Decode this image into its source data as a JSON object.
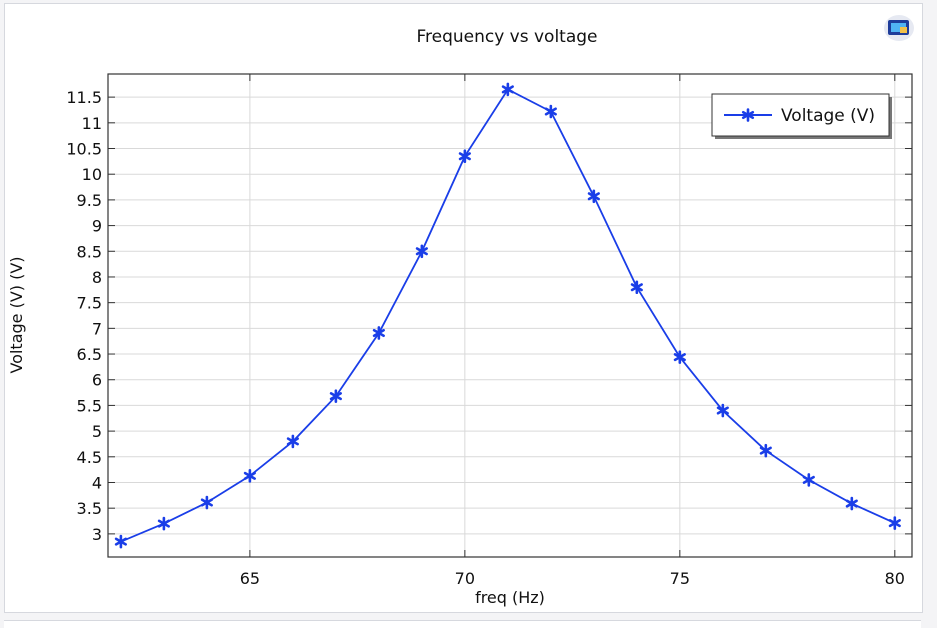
{
  "chart_data": {
    "type": "line",
    "title": "Frequency vs voltage",
    "xlabel": "freq (Hz)",
    "ylabel": "Voltage (V) (V)",
    "xlim": [
      61.7,
      80.4
    ],
    "ylim": [
      2.55,
      11.95
    ],
    "xticks": [
      65,
      70,
      75,
      80
    ],
    "xtick_labels": [
      "65",
      "70",
      "75",
      "80"
    ],
    "yticks": [
      3,
      3.5,
      4,
      4.5,
      5,
      5.5,
      6,
      6.5,
      7,
      7.5,
      8,
      8.5,
      9,
      9.5,
      10,
      10.5,
      11,
      11.5
    ],
    "ytick_labels": [
      "3",
      "3.5",
      "4",
      "4.5",
      "5",
      "5.5",
      "6",
      "6.5",
      "7",
      "7.5",
      "8",
      "8.5",
      "9",
      "9.5",
      "10",
      "10.5",
      "11",
      "11.5"
    ],
    "grid": true,
    "legend_position": "top-right",
    "series": [
      {
        "name": "Voltage (V)",
        "color": "#1a3ee8",
        "marker": "asterisk",
        "x": [
          62,
          63,
          64,
          65,
          66,
          67,
          68,
          69,
          70,
          71,
          72,
          73,
          74,
          75,
          76,
          77,
          78,
          79,
          80
        ],
        "y": [
          2.85,
          3.2,
          3.61,
          4.13,
          4.8,
          5.68,
          6.91,
          8.5,
          10.35,
          11.65,
          11.22,
          9.57,
          7.8,
          6.44,
          5.4,
          4.62,
          4.05,
          3.59,
          3.21
        ]
      }
    ]
  },
  "toolbar": {
    "icon": "monitor-icon"
  }
}
